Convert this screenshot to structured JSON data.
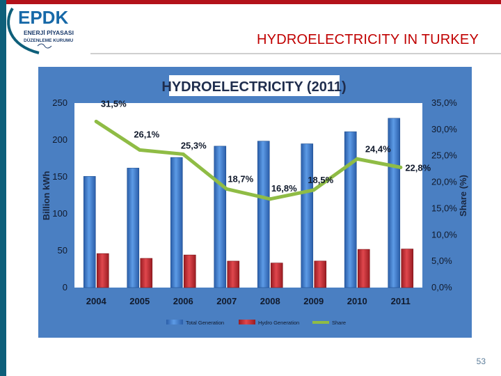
{
  "logo": {
    "wordmark": "EPDK",
    "line1": "ENERJİ PİYASASI",
    "line2": "DÜZENLEME KURUMU"
  },
  "slide": {
    "title": "HYDROELECTRICITY IN TURKEY",
    "page_number": "53"
  },
  "colors": {
    "panel": "#4a7fc2",
    "total": "#3a7bd5",
    "hydro": "#c0282e",
    "share": "#8fbc45"
  },
  "chart_data": {
    "type": "bar",
    "title": "HYDROELECTRICITY (2011)",
    "categories": [
      "2004",
      "2005",
      "2006",
      "2007",
      "2008",
      "2009",
      "2010",
      "2011"
    ],
    "series": [
      {
        "name": "Total Generation",
        "type": "bar",
        "axis": "left",
        "values": [
          150.7,
          161.9,
          176.3,
          191.6,
          198.4,
          194.8,
          211.2,
          229.4
        ]
      },
      {
        "name": "Hydro Generation",
        "type": "bar",
        "axis": "left",
        "values": [
          46.1,
          39.6,
          44.2,
          35.9,
          33.3,
          36.0,
          51.8,
          52.3
        ]
      },
      {
        "name": "Share",
        "type": "line",
        "axis": "right",
        "values": [
          31.5,
          26.1,
          25.3,
          18.7,
          16.8,
          18.5,
          24.4,
          22.8
        ],
        "labels": [
          "31,5%",
          "26,1%",
          "25,3%",
          "18,7%",
          "16,8%",
          "18,5%",
          "24,4%",
          "22,8%"
        ]
      }
    ],
    "ylabel": "Billion kWh",
    "y2label": "Share (%)",
    "ylim": [
      0,
      250
    ],
    "y2lim": [
      0,
      35
    ],
    "yticks": [
      "0",
      "50",
      "100",
      "150",
      "200",
      "250"
    ],
    "y2ticks": [
      "0,0%",
      "5,0%",
      "10,0%",
      "15,0%",
      "20,0%",
      "25,0%",
      "30,0%",
      "35,0%"
    ],
    "legend_position": "bottom",
    "grid": false
  }
}
